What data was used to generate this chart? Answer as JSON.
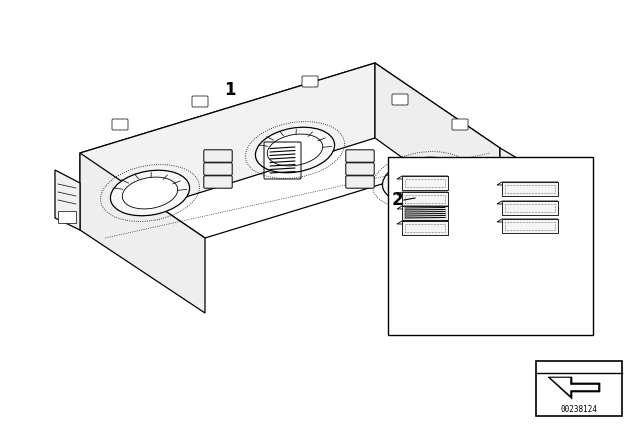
{
  "bg_color": "#ffffff",
  "line_color": "#000000",
  "part_number": "00238124",
  "label_1": "1",
  "label_2": "2",
  "fig_width": 6.4,
  "fig_height": 4.48,
  "dpi": 100
}
